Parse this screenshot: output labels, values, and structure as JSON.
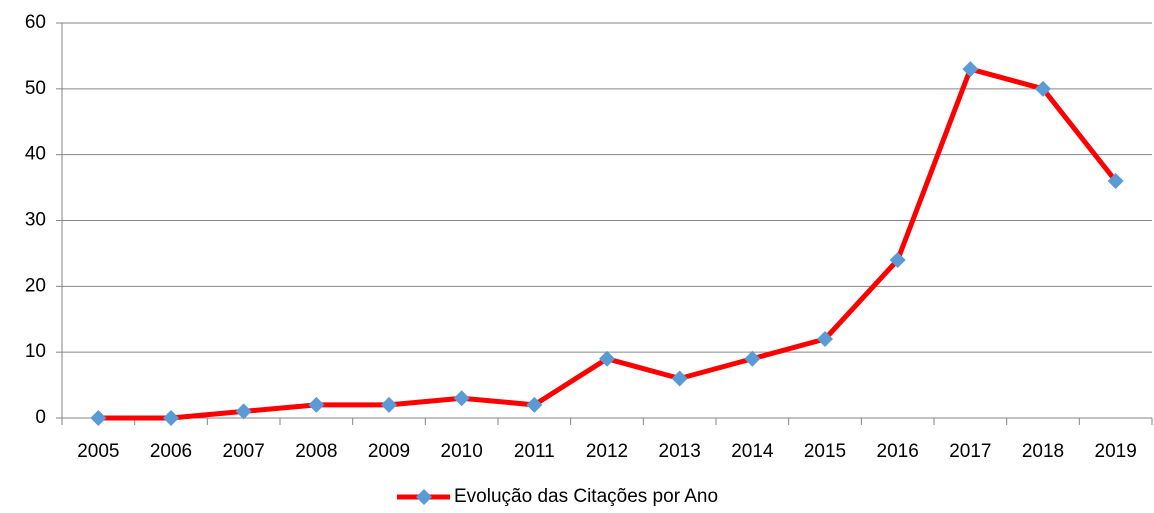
{
  "chart_data": {
    "type": "line",
    "categories": [
      "2005",
      "2006",
      "2007",
      "2008",
      "2009",
      "2010",
      "2011",
      "2012",
      "2013",
      "2014",
      "2015",
      "2016",
      "2017",
      "2018",
      "2019"
    ],
    "series": [
      {
        "name": "Evolução das Citações por Ano",
        "color": "#ff0000",
        "marker_color": "#5b9bd5",
        "values": [
          0,
          0,
          1,
          2,
          2,
          3,
          2,
          9,
          6,
          9,
          12,
          24,
          53,
          50,
          36
        ]
      }
    ],
    "ylim": [
      0,
      60
    ],
    "yticks": [
      0,
      10,
      20,
      30,
      40,
      50,
      60
    ],
    "grid": true,
    "legend": "bottom"
  }
}
